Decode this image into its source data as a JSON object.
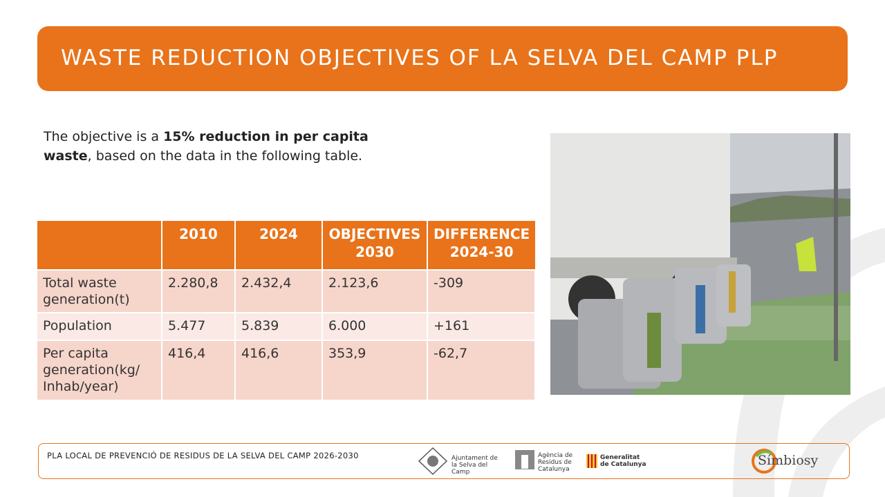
{
  "header": {
    "title": "WASTE REDUCTION OBJECTIVES OF LA SELVA DEL CAMP PLP"
  },
  "intro": {
    "before": "The objective is a ",
    "bold": "15% reduction in per capita waste",
    "after": ", based on the data in the following table."
  },
  "table": {
    "headers": [
      "2010",
      "2024",
      "OBJECTIVES 2030",
      "DIFFERENCE 2024-30"
    ],
    "rows": [
      [
        "Total waste generation(t)",
        "2.280,8",
        "2.432,4",
        "2.123,6",
        "-309"
      ],
      [
        "Population",
        "5.477",
        "5.839",
        "6.000",
        "+161"
      ],
      [
        "Per capita generation(kg/ Inhab/year)",
        "416,4",
        "416,6",
        "353,9",
        "-62,7"
      ]
    ]
  },
  "footer": {
    "text": "PLA LOCAL DE PREVENCIÓ DE RESIDUS DE LA SELVA DEL CAMP 2026-2030",
    "logos": [
      "Ajuntament de la Selva del Camp",
      "Agència de Residus de Catalunya",
      "Generalitat de Catalunya",
      "Símbiosy"
    ]
  }
}
